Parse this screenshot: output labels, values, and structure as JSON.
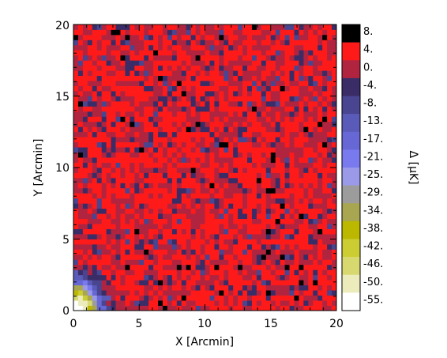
{
  "chart_data": {
    "type": "heatmap",
    "xlabel": "X [Arcmin]",
    "ylabel": "Y [Arcmin]",
    "xlim": [
      0,
      20
    ],
    "ylim": [
      0,
      20
    ],
    "x_ticks": [
      "0",
      "5",
      "10",
      "15",
      "20"
    ],
    "y_ticks": [
      "0",
      "5",
      "10",
      "15",
      "20"
    ],
    "grid_cells": [
      56,
      56
    ],
    "colorbar": {
      "label": "Δ [μK]",
      "levels": [
        {
          "label": "8.",
          "color": "#000000"
        },
        {
          "label": "4.",
          "color": "#ff1a1a"
        },
        {
          "label": "0.",
          "color": "#b0243f"
        },
        {
          "label": "-4.",
          "color": "#3a2c66"
        },
        {
          "label": "-8.",
          "color": "#4a4590"
        },
        {
          "label": "-13.",
          "color": "#5a5ab8"
        },
        {
          "label": "-17.",
          "color": "#6767d6"
        },
        {
          "label": "-21.",
          "color": "#7a7aef"
        },
        {
          "label": "-25.",
          "color": "#9a9ae8"
        },
        {
          "label": "-29.",
          "color": "#9c9c9c"
        },
        {
          "label": "-34.",
          "color": "#a8a650"
        },
        {
          "label": "-38.",
          "color": "#bcb800"
        },
        {
          "label": "-42.",
          "color": "#cccc33"
        },
        {
          "label": "-46.",
          "color": "#d8d870"
        },
        {
          "label": "-50.",
          "color": "#ebebbb"
        },
        {
          "label": "-55.",
          "color": "#ffffff"
        }
      ]
    },
    "features": {
      "cold_spot_center": [
        0.3,
        0.3
      ],
      "cold_spot_min": -55,
      "cold_spot_radius_arcmin": 3.5,
      "background_mean": 2,
      "background_range": [
        -8,
        8
      ]
    }
  }
}
